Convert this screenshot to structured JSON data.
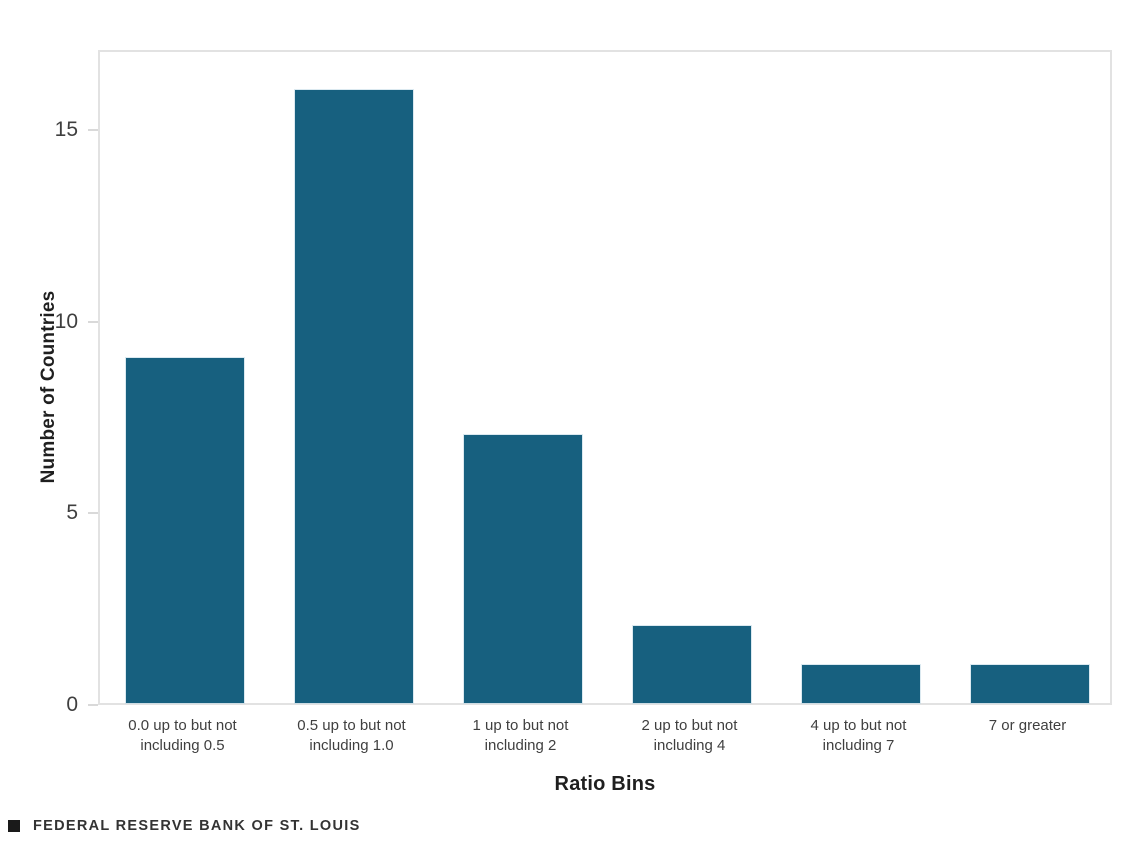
{
  "chart_data": {
    "type": "bar",
    "title": "",
    "categories": [
      "0.0 up to but not including 0.5",
      "0.5 up to but not including 1.0",
      "1 up to but not including 2",
      "2 up to but not including 4",
      "4 up to but not including 7",
      "7 or greater"
    ],
    "values": [
      9,
      16,
      7,
      2,
      1,
      1
    ],
    "xlabel": "Ratio Bins",
    "ylabel": "Number of Countries",
    "yticks": [
      0,
      5,
      10,
      15
    ],
    "ylim": [
      0,
      17.1
    ],
    "grid": false,
    "legend_position": "none"
  },
  "footer": {
    "brand": "FEDERAL RESERVE BANK OF ST. LOUIS"
  },
  "colors": {
    "bar": "#17607F",
    "axis_line": "#E2E2E2",
    "tick_mark": "#D9D9D9",
    "tick_text": "#3F3F3F",
    "category_text": "#3F3F3F",
    "axis_title_text": "#1F1F1F",
    "footer_text": "#333333",
    "footer_square": "#1A1A1A",
    "background": "#FFFFFF"
  }
}
